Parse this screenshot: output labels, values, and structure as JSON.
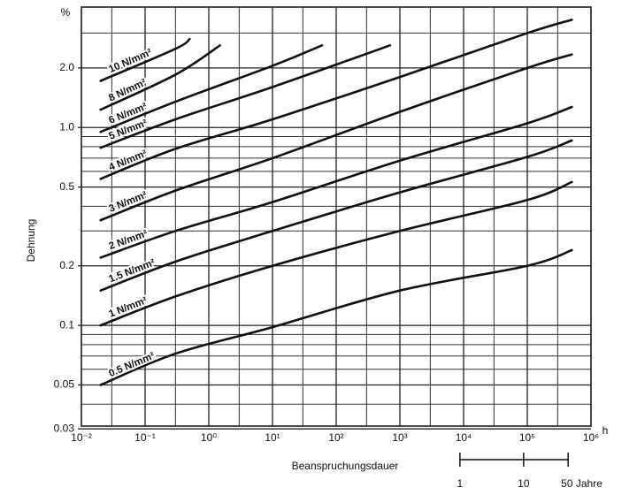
{
  "chart_data": {
    "type": "line",
    "x_title": "Beanspruchungsdauer",
    "x_unit": "h",
    "y_title": "Dehnung",
    "y_unit": "%",
    "log_x": true,
    "log_y": true,
    "grid": true,
    "color": "#111111",
    "xlim": [
      0.01,
      1000000
    ],
    "ylim": [
      0.031,
      4.06
    ],
    "xticks": [
      {
        "value": 0.01,
        "label": "10⁻²"
      },
      {
        "value": 0.1,
        "label": "10⁻¹"
      },
      {
        "value": 1,
        "label": "10⁰"
      },
      {
        "value": 10,
        "label": "10¹"
      },
      {
        "value": 100,
        "label": "10²"
      },
      {
        "value": 1000,
        "label": "10³"
      },
      {
        "value": 10000,
        "label": "10⁴"
      },
      {
        "value": 100000,
        "label": "10⁵"
      },
      {
        "value": 1000000,
        "label": "10⁶"
      }
    ],
    "x_minor_ticks": [
      0.03,
      0.3,
      3,
      30,
      300,
      3000,
      30000,
      300000
    ],
    "yticks": [
      0.03,
      0.05,
      0.1,
      0.2,
      0.5,
      {
        "value": 1,
        "label": "1.0"
      },
      {
        "value": 2,
        "label": "2.0"
      }
    ],
    "y_minor_ticks": [
      0.04,
      0.06,
      0.07,
      0.08,
      0.09,
      0.3,
      0.4,
      0.6,
      0.7,
      0.8,
      0.9,
      3
    ],
    "x2ticks": [
      {
        "value": 8760,
        "label": "1"
      },
      {
        "value": 87600,
        "label": "10"
      },
      {
        "value": 438000,
        "label": "50 Jahre"
      }
    ],
    "series": [
      {
        "name": "0.5 N/mm²",
        "x": [
          0.02,
          0.3,
          10,
          1000,
          100000,
          500000
        ],
        "values": [
          0.05,
          0.072,
          0.098,
          0.15,
          0.2,
          0.24
        ]
      },
      {
        "name": "1 N/mm²",
        "x": [
          0.02,
          0.3,
          10,
          1000,
          100000,
          500000
        ],
        "values": [
          0.1,
          0.14,
          0.2,
          0.3,
          0.43,
          0.53
        ]
      },
      {
        "name": "1.5 N/mm²",
        "x": [
          0.02,
          0.3,
          10,
          1000,
          100000,
          500000
        ],
        "values": [
          0.15,
          0.21,
          0.3,
          0.47,
          0.71,
          0.86
        ]
      },
      {
        "name": "2 N/mm²",
        "x": [
          0.02,
          0.3,
          10,
          1000,
          100000,
          500000
        ],
        "values": [
          0.22,
          0.3,
          0.42,
          0.68,
          1.05,
          1.27
        ]
      },
      {
        "name": "3 N/mm²",
        "x": [
          0.02,
          0.3,
          10,
          1000,
          100000,
          500000
        ],
        "values": [
          0.34,
          0.48,
          0.7,
          1.2,
          2.0,
          2.34
        ]
      },
      {
        "name": "4 N/mm²",
        "x": [
          0.02,
          0.3,
          10,
          1000,
          100000,
          500000
        ],
        "values": [
          0.55,
          0.78,
          1.1,
          1.8,
          3.0,
          3.5
        ]
      },
      {
        "name": "5 N/mm²",
        "x": [
          0.02,
          0.3,
          10,
          700
        ],
        "values": [
          0.79,
          1.1,
          1.6,
          2.6
        ]
      },
      {
        "name": "6 N/mm²",
        "x": [
          0.02,
          0.3,
          10,
          60
        ],
        "values": [
          0.95,
          1.35,
          2.05,
          2.6
        ]
      },
      {
        "name": "8 N/mm²",
        "x": [
          0.02,
          0.3,
          1.5
        ],
        "values": [
          1.23,
          1.85,
          2.6
        ]
      },
      {
        "name": "10 N/mm²",
        "x": [
          0.02,
          0.3,
          0.5
        ],
        "values": [
          1.72,
          2.5,
          2.8
        ]
      }
    ]
  }
}
